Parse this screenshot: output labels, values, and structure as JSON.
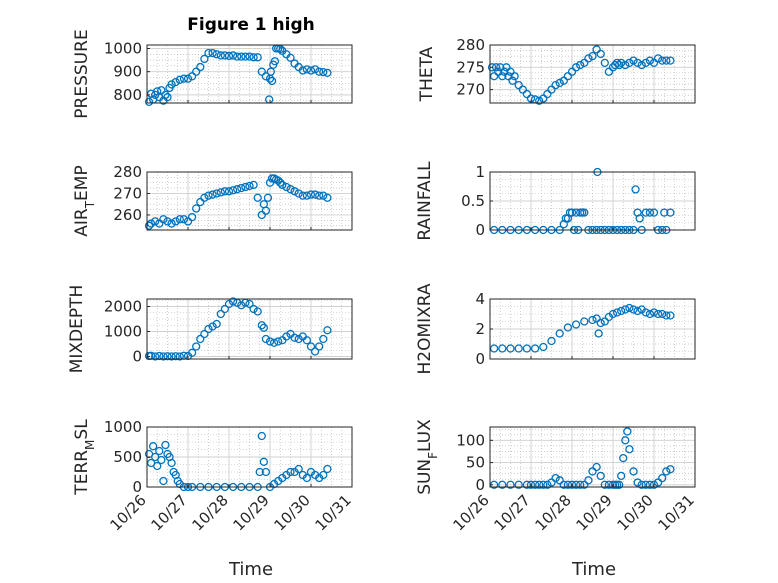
{
  "figure_title": "Figure 1 high",
  "x_axis_label": "Time",
  "x_tick_labels": [
    "10/26",
    "10/27",
    "10/28",
    "10/29",
    "10/30",
    "10/31"
  ],
  "colors": {
    "series": "#0072bd",
    "axes": "#262626",
    "grid": "#b0b0b0",
    "background": "#ffffff"
  },
  "chart_data": [
    {
      "type": "scatter",
      "title": "Figure 1 high",
      "ylabel": "PRESSURE",
      "xlim": [
        26,
        31
      ],
      "ylim": [
        765,
        1015
      ],
      "yticks": [
        800,
        900,
        1000
      ],
      "grid": true,
      "series": [
        {
          "x": [
            26.05,
            26.1,
            26.15,
            26.2,
            26.25,
            26.3,
            26.35,
            26.4,
            26.45,
            26.5,
            26.55,
            26.6,
            26.7,
            26.8,
            26.9,
            27.0,
            27.1,
            27.2,
            27.3,
            27.4,
            27.5,
            27.6,
            27.7,
            27.8,
            27.9,
            28.0,
            28.1,
            28.2,
            28.3,
            28.4,
            28.5,
            28.6,
            28.7,
            28.8,
            28.9,
            28.98,
            29.0,
            29.02,
            29.05,
            29.08,
            29.12,
            29.15,
            29.2,
            29.25,
            29.3,
            29.4,
            29.5,
            29.6,
            29.7,
            29.8,
            29.9,
            30.0,
            30.1,
            30.2,
            30.3,
            30.4
          ],
          "y": [
            770,
            805,
            780,
            800,
            815,
            790,
            820,
            775,
            800,
            790,
            830,
            845,
            855,
            865,
            870,
            870,
            880,
            900,
            920,
            955,
            980,
            980,
            975,
            970,
            970,
            968,
            970,
            965,
            965,
            965,
            965,
            962,
            962,
            900,
            880,
            780,
            870,
            900,
            860,
            930,
            945,
            1000,
            1000,
            998,
            990,
            975,
            960,
            935,
            920,
            905,
            910,
            905,
            910,
            900,
            898,
            895
          ]
        }
      ]
    },
    {
      "type": "scatter",
      "title": "",
      "ylabel": "THETA",
      "xlim": [
        26,
        31
      ],
      "ylim": [
        267,
        280
      ],
      "yticks": [
        270,
        275,
        280
      ],
      "grid": true,
      "series": [
        {
          "x": [
            26.05,
            26.1,
            26.15,
            26.2,
            26.25,
            26.3,
            26.35,
            26.4,
            26.45,
            26.5,
            26.55,
            26.6,
            26.7,
            26.8,
            26.9,
            27.0,
            27.1,
            27.2,
            27.3,
            27.4,
            27.5,
            27.6,
            27.7,
            27.8,
            27.9,
            28.0,
            28.1,
            28.2,
            28.3,
            28.4,
            28.5,
            28.6,
            28.7,
            28.8,
            28.9,
            29.0,
            29.05,
            29.1,
            29.15,
            29.2,
            29.3,
            29.4,
            29.5,
            29.6,
            29.7,
            29.8,
            29.9,
            30.0,
            30.1,
            30.2,
            30.3,
            30.4
          ],
          "y": [
            275,
            273,
            275,
            274,
            275,
            273,
            274,
            275,
            273,
            274,
            272,
            273,
            271,
            270,
            269,
            268,
            267.8,
            267.5,
            268,
            269,
            270,
            271,
            271.5,
            272,
            273,
            274,
            275,
            275.5,
            276,
            277,
            277.5,
            279,
            278,
            276,
            274,
            275,
            275.5,
            276,
            275.5,
            276,
            275.5,
            276,
            276.5,
            276,
            275.5,
            276,
            276.5,
            276,
            277,
            276.5,
            276.5,
            276.5
          ]
        }
      ]
    },
    {
      "type": "scatter",
      "title": "",
      "ylabel": "AIR_TEMP",
      "xlim": [
        26,
        31
      ],
      "ylim": [
        253,
        280
      ],
      "yticks": [
        260,
        270,
        280
      ],
      "grid": true,
      "series": [
        {
          "x": [
            26.05,
            26.1,
            26.2,
            26.3,
            26.4,
            26.5,
            26.6,
            26.7,
            26.8,
            26.9,
            27.0,
            27.1,
            27.2,
            27.3,
            27.4,
            27.5,
            27.6,
            27.7,
            27.8,
            27.9,
            28.0,
            28.1,
            28.2,
            28.3,
            28.4,
            28.5,
            28.6,
            28.7,
            28.8,
            28.85,
            28.9,
            28.95,
            29.0,
            29.05,
            29.1,
            29.15,
            29.2,
            29.25,
            29.3,
            29.4,
            29.5,
            29.6,
            29.7,
            29.8,
            29.9,
            30.0,
            30.1,
            30.2,
            30.3,
            30.4
          ],
          "y": [
            255,
            256,
            257,
            256,
            258,
            257,
            256,
            257,
            258,
            258,
            257,
            259,
            263,
            266,
            268,
            269,
            269.5,
            270,
            270.5,
            271,
            271,
            271.5,
            272,
            272.5,
            273,
            273.5,
            274,
            268,
            260,
            265,
            262,
            268,
            275,
            277,
            277,
            276.5,
            276,
            275,
            274,
            273,
            272,
            271,
            270,
            269,
            269,
            269.5,
            269.5,
            269,
            269,
            268
          ]
        }
      ]
    },
    {
      "type": "scatter",
      "title": "",
      "ylabel": "RAINFALL",
      "xlim": [
        26,
        31
      ],
      "ylim": [
        0,
        1
      ],
      "yticks": [
        0,
        0.5,
        1
      ],
      "grid": true,
      "series": [
        {
          "x": [
            26.1,
            26.3,
            26.5,
            26.7,
            26.9,
            27.1,
            27.3,
            27.5,
            27.7,
            27.8,
            27.85,
            27.9,
            27.95,
            28.0,
            28.05,
            28.1,
            28.15,
            28.2,
            28.25,
            28.3,
            28.4,
            28.5,
            28.6,
            28.62,
            28.7,
            28.8,
            28.9,
            29.0,
            29.1,
            29.2,
            29.3,
            29.4,
            29.5,
            29.55,
            29.6,
            29.65,
            29.7,
            29.8,
            29.9,
            30.0,
            30.1,
            30.2,
            30.25,
            30.3,
            30.4
          ],
          "y": [
            0,
            0,
            0,
            0,
            0,
            0,
            0,
            0,
            0,
            0.1,
            0.2,
            0.2,
            0.3,
            0.3,
            0,
            0.3,
            0,
            0.3,
            0.3,
            0.3,
            0,
            0,
            0,
            1,
            0,
            0,
            0,
            0,
            0,
            0,
            0,
            0,
            0,
            0.7,
            0.3,
            0.2,
            0,
            0.3,
            0.3,
            0.3,
            0,
            0,
            0.3,
            0,
            0.3
          ]
        }
      ]
    },
    {
      "type": "scatter",
      "title": "",
      "ylabel": "MIXDEPTH",
      "xlim": [
        26,
        31
      ],
      "ylim": [
        -100,
        2300
      ],
      "yticks": [
        0,
        1000,
        2000
      ],
      "grid": true,
      "series": [
        {
          "x": [
            26.05,
            26.1,
            26.2,
            26.3,
            26.4,
            26.5,
            26.6,
            26.7,
            26.8,
            26.9,
            27.0,
            27.1,
            27.2,
            27.3,
            27.4,
            27.5,
            27.6,
            27.7,
            27.8,
            27.9,
            28.0,
            28.1,
            28.2,
            28.3,
            28.4,
            28.5,
            28.6,
            28.7,
            28.8,
            28.85,
            28.9,
            29.0,
            29.1,
            29.2,
            29.3,
            29.4,
            29.5,
            29.6,
            29.7,
            29.8,
            29.9,
            30.0,
            30.1,
            30.2,
            30.3,
            30.4
          ],
          "y": [
            20,
            30,
            0,
            20,
            0,
            10,
            0,
            10,
            0,
            30,
            20,
            150,
            400,
            700,
            900,
            1100,
            1200,
            1300,
            1700,
            1900,
            2100,
            2200,
            2150,
            2050,
            2150,
            2100,
            1900,
            1800,
            1250,
            1150,
            700,
            600,
            550,
            600,
            650,
            800,
            900,
            750,
            700,
            800,
            650,
            400,
            200,
            400,
            700,
            1050
          ]
        }
      ]
    },
    {
      "type": "scatter",
      "title": "",
      "ylabel": "H2OMIXRA",
      "xlim": [
        26,
        31
      ],
      "ylim": [
        0,
        4
      ],
      "yticks": [
        0,
        2,
        4
      ],
      "grid": true,
      "series": [
        {
          "x": [
            26.1,
            26.3,
            26.5,
            26.7,
            26.9,
            27.1,
            27.3,
            27.5,
            27.7,
            27.9,
            28.1,
            28.3,
            28.5,
            28.6,
            28.65,
            28.7,
            28.8,
            28.9,
            29.0,
            29.1,
            29.2,
            29.3,
            29.4,
            29.5,
            29.6,
            29.7,
            29.8,
            29.9,
            30.0,
            30.1,
            30.2,
            30.3,
            30.4
          ],
          "y": [
            0.7,
            0.7,
            0.7,
            0.7,
            0.7,
            0.7,
            0.8,
            1.2,
            1.7,
            2.1,
            2.3,
            2.5,
            2.6,
            2.7,
            1.7,
            2.4,
            2.5,
            2.8,
            3.0,
            3.1,
            3.2,
            3.3,
            3.4,
            3.3,
            3.2,
            3.3,
            3.1,
            3.0,
            3.1,
            3.0,
            3.0,
            2.9,
            2.9
          ]
        }
      ]
    },
    {
      "type": "scatter",
      "title": "",
      "ylabel": "TERR_MSL",
      "xlim": [
        26,
        31
      ],
      "ylim": [
        0,
        1000
      ],
      "yticks": [
        0,
        500,
        1000
      ],
      "grid": true,
      "series": [
        {
          "x": [
            26.05,
            26.1,
            26.15,
            26.2,
            26.25,
            26.3,
            26.35,
            26.4,
            26.45,
            26.5,
            26.55,
            26.6,
            26.65,
            26.7,
            26.75,
            26.8,
            26.9,
            27.0,
            27.1,
            27.3,
            27.5,
            27.7,
            27.9,
            28.1,
            28.3,
            28.5,
            28.7,
            28.75,
            28.8,
            28.85,
            28.9,
            29.0,
            29.1,
            29.2,
            29.3,
            29.4,
            29.5,
            29.6,
            29.7,
            29.8,
            29.9,
            30.0,
            30.1,
            30.2,
            30.3,
            30.4
          ],
          "y": [
            550,
            400,
            680,
            500,
            350,
            600,
            450,
            100,
            700,
            550,
            500,
            400,
            250,
            200,
            100,
            50,
            0,
            0,
            0,
            0,
            0,
            0,
            0,
            0,
            0,
            0,
            0,
            250,
            850,
            420,
            250,
            0,
            50,
            100,
            150,
            200,
            250,
            250,
            300,
            200,
            150,
            250,
            200,
            150,
            200,
            300
          ]
        }
      ]
    },
    {
      "type": "scatter",
      "title": "",
      "ylabel": "SUN_FLUX",
      "xlim": [
        26,
        31
      ],
      "ylim": [
        -5,
        130
      ],
      "yticks": [
        0,
        50,
        100
      ],
      "grid": true,
      "series": [
        {
          "x": [
            26.1,
            26.3,
            26.5,
            26.7,
            26.9,
            27.0,
            27.1,
            27.2,
            27.3,
            27.4,
            27.5,
            27.6,
            27.7,
            27.8,
            27.9,
            28.0,
            28.1,
            28.2,
            28.3,
            28.4,
            28.5,
            28.6,
            28.7,
            28.8,
            28.9,
            29.0,
            29.05,
            29.1,
            29.15,
            29.2,
            29.25,
            29.3,
            29.35,
            29.4,
            29.5,
            29.6,
            29.7,
            29.8,
            29.9,
            30.0,
            30.1,
            30.2,
            30.3,
            30.4
          ],
          "y": [
            0,
            0,
            0,
            0,
            0,
            0,
            0,
            0,
            0,
            0,
            5,
            15,
            10,
            0,
            0,
            0,
            0,
            0,
            0,
            10,
            30,
            40,
            20,
            0,
            0,
            0,
            0,
            0,
            0,
            20,
            60,
            100,
            120,
            80,
            30,
            5,
            0,
            0,
            0,
            0,
            5,
            15,
            30,
            35
          ]
        }
      ]
    }
  ]
}
